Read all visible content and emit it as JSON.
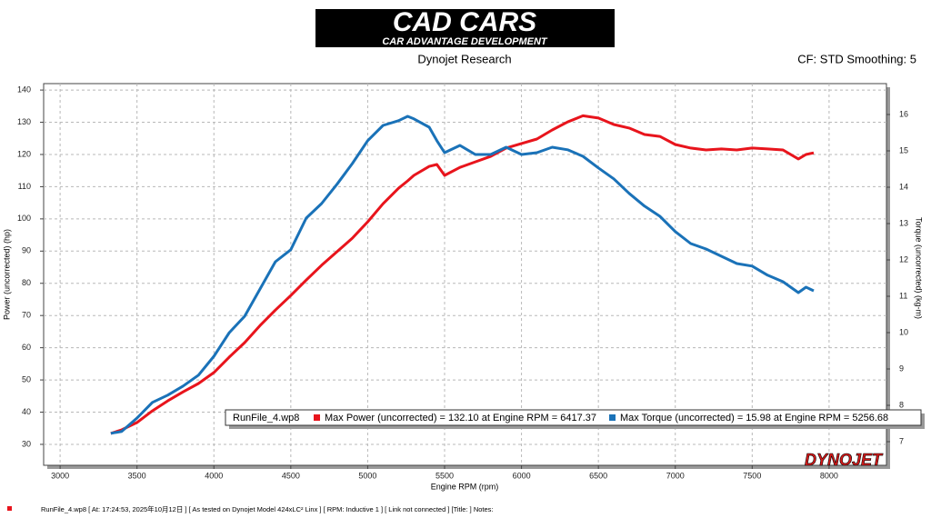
{
  "header": {
    "logo": "CAD CARS",
    "logo_tagline": "CAR ADVANTAGE DEVELOPMENT",
    "brand": "Dynojet Research",
    "settings": "CF: STD Smoothing: 5"
  },
  "chart_data": {
    "type": "line",
    "x_label": "Engine RPM (rpm)",
    "y_label": "Power (uncorrected) (hp)",
    "y2_label": "Torque (uncorrected) (kg-m)",
    "x": [
      3330,
      3400,
      3500,
      3600,
      3700,
      3800,
      3900,
      4000,
      4100,
      4200,
      4300,
      4400,
      4500,
      4600,
      4700,
      4800,
      4900,
      5000,
      5100,
      5200,
      5260,
      5300,
      5400,
      5450,
      5500,
      5600,
      5700,
      5800,
      5900,
      6000,
      6100,
      6200,
      6300,
      6400,
      6500,
      6600,
      6700,
      6800,
      6900,
      7000,
      7100,
      7200,
      7300,
      7400,
      7500,
      7600,
      7700,
      7800,
      7850,
      7900
    ],
    "series": [
      {
        "name": "Max Power (uncorrected) = 132.10 at Engine RPM = 6417.37",
        "color": "#e8141c",
        "axis": "y",
        "values": [
          33.4,
          34.5,
          36.8,
          40.4,
          43.5,
          46.3,
          48.9,
          52.3,
          57.1,
          61.6,
          66.9,
          71.7,
          76.2,
          81.0,
          85.6,
          89.8,
          94.0,
          99.1,
          104.7,
          109.5,
          111.8,
          113.5,
          116.3,
          116.9,
          113.5,
          116.0,
          117.7,
          119.4,
          122.0,
          123.4,
          124.8,
          127.6,
          130.1,
          132.0,
          131.3,
          129.3,
          128.2,
          126.2,
          125.6,
          123.1,
          122.0,
          121.4,
          121.7,
          121.4,
          122.0,
          121.7,
          121.4,
          118.6,
          120.0,
          120.5
        ]
      },
      {
        "name": "Max Torque (uncorrected) = 15.98 at Engine RPM = 5256.68",
        "color": "#1a72b8",
        "axis": "y2",
        "values": [
          7.23,
          7.28,
          7.65,
          8.08,
          8.28,
          8.53,
          8.83,
          9.35,
          10.0,
          10.45,
          11.2,
          11.95,
          12.28,
          13.15,
          13.55,
          14.08,
          14.65,
          15.28,
          15.7,
          15.83,
          15.95,
          15.88,
          15.65,
          15.28,
          14.95,
          15.15,
          14.9,
          14.9,
          15.1,
          14.9,
          14.95,
          15.1,
          15.03,
          14.85,
          14.53,
          14.23,
          13.83,
          13.48,
          13.2,
          12.78,
          12.45,
          12.3,
          12.1,
          11.9,
          11.83,
          11.58,
          11.4,
          11.1,
          11.25,
          11.15
        ]
      }
    ],
    "legend_title": "RunFile_4.wp8",
    "xlim": [
      2893,
      8373
    ],
    "xticks": [
      3000,
      3500,
      4000,
      4500,
      5000,
      5500,
      6000,
      6500,
      7000,
      7500,
      8000
    ],
    "ylim": [
      23.5,
      142
    ],
    "yticks": [
      30,
      40,
      50,
      60,
      70,
      80,
      90,
      100,
      110,
      120,
      130,
      140
    ],
    "y2lim": [
      6.35,
      16.85
    ],
    "y2ticks": [
      7,
      8,
      9,
      10,
      11,
      12,
      13,
      14,
      15,
      16
    ],
    "grid": true,
    "watermark": "DYNOJET"
  },
  "footer": {
    "text": "RunFile_4.wp8  [  At:  17:24:53,  2025年10月12日 ]  [ As tested on Dynojet Model 424xLC² Linx ]  [  RPM:  Inductive 1  ]  [  Link not connected  ]  [Title:  ]   Notes:"
  }
}
